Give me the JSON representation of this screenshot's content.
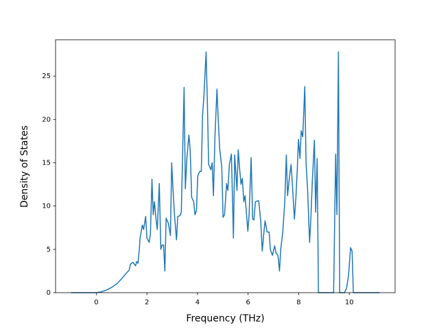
{
  "chart_data": {
    "type": "line",
    "xlabel": "Frequency (THz)",
    "ylabel": "Density of States",
    "xlim": [
      -1.61,
      11.81
    ],
    "ylim": [
      0,
      29.2
    ],
    "xticks": [
      0,
      2,
      4,
      6,
      8,
      10
    ],
    "yticks": [
      0,
      5,
      10,
      15,
      20,
      25
    ],
    "series": [
      {
        "color": "#1f77b4",
        "x": [
          -1,
          0,
          0.2,
          0.4,
          0.6,
          0.8,
          1.0,
          1.2,
          1.3,
          1.35,
          1.45,
          1.55,
          1.6,
          1.65,
          1.7,
          1.73,
          1.82,
          1.87,
          1.95,
          2.0,
          2.09,
          2.14,
          2.2,
          2.25,
          2.3,
          2.36,
          2.41,
          2.49,
          2.55,
          2.6,
          2.66,
          2.71,
          2.76,
          2.85,
          2.93,
          2.98,
          3.04,
          3.09,
          3.17,
          3.22,
          3.31,
          3.36,
          3.47,
          3.52,
          3.58,
          3.66,
          3.71,
          3.77,
          3.85,
          3.9,
          3.96,
          4.01,
          4.09,
          4.15,
          4.2,
          4.25,
          4.34,
          4.39,
          4.44,
          4.53,
          4.58,
          4.63,
          4.69,
          4.77,
          4.82,
          4.88,
          4.96,
          5.01,
          5.07,
          5.15,
          5.2,
          5.26,
          5.34,
          5.42,
          5.47,
          5.56,
          5.61,
          5.66,
          5.72,
          5.77,
          5.83,
          5.88,
          5.99,
          6.04,
          6.12,
          6.18,
          6.23,
          6.29,
          6.37,
          6.42,
          6.5,
          6.56,
          6.61,
          6.67,
          6.75,
          6.83,
          6.88,
          6.96,
          7.05,
          7.1,
          7.18,
          7.24,
          7.29,
          7.37,
          7.45,
          7.51,
          7.56,
          7.64,
          7.7,
          7.75,
          7.83,
          7.89,
          7.94,
          7.99,
          8.05,
          8.1,
          8.16,
          8.24,
          8.29,
          8.35,
          8.43,
          8.48,
          8.54,
          8.62,
          8.67,
          8.73,
          8.78,
          9.38,
          9.46,
          9.51,
          9.57,
          9.62,
          9.81,
          9.89,
          9.97,
          10.05,
          10.11,
          10.16,
          11.19
        ],
        "values": [
          0,
          0,
          0.1,
          0.3,
          0.6,
          1.0,
          1.6,
          2.3,
          2.6,
          3.3,
          3.5,
          3.1,
          3.6,
          3.4,
          5.0,
          6.3,
          7.8,
          7.3,
          8.8,
          6.3,
          5.8,
          6.8,
          13.1,
          9.0,
          10.5,
          8.5,
          7.3,
          12.6,
          5.0,
          5.5,
          5.5,
          2.5,
          8.6,
          8.0,
          6.6,
          15.0,
          11.5,
          9.0,
          6.1,
          8.8,
          8.9,
          9.3,
          23.7,
          12.0,
          15.5,
          18.2,
          16.5,
          11.0,
          10.5,
          9.0,
          9.5,
          13.5,
          14.0,
          14.0,
          20.5,
          22.5,
          27.8,
          22.0,
          14.8,
          14.2,
          15.0,
          11.2,
          18.0,
          23.5,
          20.0,
          16.5,
          14.5,
          8.7,
          9.0,
          12.6,
          11.8,
          14.8,
          16.0,
          6.3,
          15.9,
          11.8,
          16.5,
          14.5,
          12.5,
          13.2,
          10.5,
          11.2,
          7.1,
          9.0,
          15.6,
          8.5,
          8.4,
          10.5,
          10.6,
          10.6,
          8.2,
          4.8,
          6.5,
          8.3,
          7.0,
          7.0,
          5.0,
          4.3,
          5.4,
          4.6,
          4.3,
          2.5,
          5.0,
          7.0,
          10.5,
          15.9,
          11.2,
          13.5,
          14.8,
          12.5,
          8.5,
          11.0,
          14.0,
          17.7,
          15.5,
          18.7,
          18.0,
          23.8,
          15.0,
          12.0,
          5.8,
          8.5,
          13.0,
          17.6,
          9.3,
          15.5,
          0,
          0,
          16.0,
          9.0,
          27.8,
          0,
          0,
          0.5,
          2.0,
          5.2,
          4.8,
          0,
          0
        ]
      }
    ]
  }
}
